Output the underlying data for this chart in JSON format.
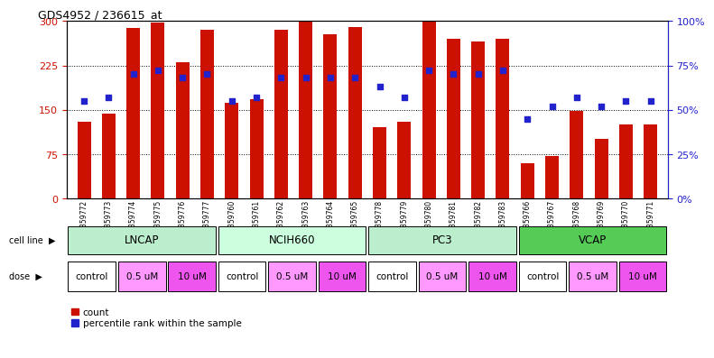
{
  "title": "GDS4952 / 236615_at",
  "samples": [
    "GSM1359772",
    "GSM1359773",
    "GSM1359774",
    "GSM1359775",
    "GSM1359776",
    "GSM1359777",
    "GSM1359760",
    "GSM1359761",
    "GSM1359762",
    "GSM1359763",
    "GSM1359764",
    "GSM1359765",
    "GSM1359778",
    "GSM1359779",
    "GSM1359780",
    "GSM1359781",
    "GSM1359782",
    "GSM1359783",
    "GSM1359766",
    "GSM1359767",
    "GSM1359768",
    "GSM1359769",
    "GSM1359770",
    "GSM1359771"
  ],
  "counts": [
    130,
    143,
    288,
    297,
    230,
    285,
    162,
    168,
    285,
    300,
    278,
    290,
    120,
    130,
    300,
    270,
    265,
    270,
    60,
    72,
    148,
    100,
    125,
    125
  ],
  "percentile_ranks": [
    55,
    57,
    70,
    72,
    68,
    70,
    55,
    57,
    68,
    68,
    68,
    68,
    63,
    57,
    72,
    70,
    70,
    72,
    45,
    52,
    57,
    52,
    55,
    55
  ],
  "ylim_left": [
    0,
    300
  ],
  "ylim_right": [
    0,
    100
  ],
  "yticks_left": [
    0,
    75,
    150,
    225,
    300
  ],
  "yticks_right": [
    0,
    25,
    50,
    75,
    100
  ],
  "yticklabels_right": [
    "0%",
    "25%",
    "50%",
    "75%",
    "100%"
  ],
  "bar_color": "#CC1100",
  "dot_color": "#2222CC",
  "bg_color": "#FFFFFF",
  "axis_color_left": "#CC1100",
  "axis_color_right": "#2222CC",
  "cell_groups": [
    {
      "start": 0,
      "end": 6,
      "label": "LNCAP",
      "color": "#BBEECC"
    },
    {
      "start": 6,
      "end": 12,
      "label": "NCIH660",
      "color": "#CCFFDD"
    },
    {
      "start": 12,
      "end": 18,
      "label": "PC3",
      "color": "#BBEECC"
    },
    {
      "start": 18,
      "end": 24,
      "label": "VCAP",
      "color": "#55CC55"
    }
  ],
  "dose_groups": [
    {
      "start": 0,
      "end": 2,
      "label": "control",
      "color": "#FFFFFF"
    },
    {
      "start": 2,
      "end": 4,
      "label": "0.5 uM",
      "color": "#FF99FF"
    },
    {
      "start": 4,
      "end": 6,
      "label": "10 uM",
      "color": "#EE55EE"
    },
    {
      "start": 6,
      "end": 8,
      "label": "control",
      "color": "#FFFFFF"
    },
    {
      "start": 8,
      "end": 10,
      "label": "0.5 uM",
      "color": "#FF99FF"
    },
    {
      "start": 10,
      "end": 12,
      "label": "10 uM",
      "color": "#EE55EE"
    },
    {
      "start": 12,
      "end": 14,
      "label": "control",
      "color": "#FFFFFF"
    },
    {
      "start": 14,
      "end": 16,
      "label": "0.5 uM",
      "color": "#FF99FF"
    },
    {
      "start": 16,
      "end": 18,
      "label": "10 uM",
      "color": "#EE55EE"
    },
    {
      "start": 18,
      "end": 20,
      "label": "control",
      "color": "#FFFFFF"
    },
    {
      "start": 20,
      "end": 22,
      "label": "0.5 uM",
      "color": "#FF99FF"
    },
    {
      "start": 22,
      "end": 24,
      "label": "10 uM",
      "color": "#EE55EE"
    }
  ],
  "legend_items": [
    {
      "label": "count",
      "color": "#CC1100"
    },
    {
      "label": "percentile rank within the sample",
      "color": "#2222CC"
    }
  ]
}
